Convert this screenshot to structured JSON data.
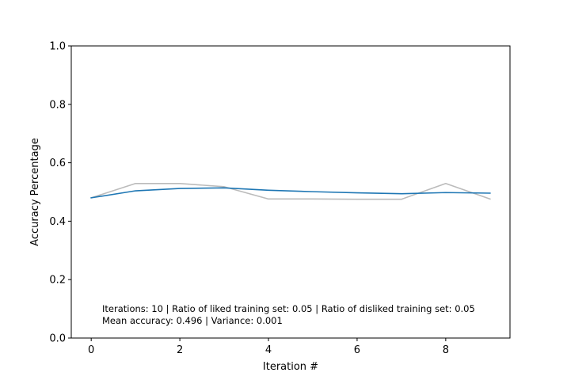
{
  "chart_data": {
    "type": "line",
    "title": "",
    "xlabel": "Iteration #",
    "ylabel": "Accuracy Percentage",
    "xlim": [
      -0.45,
      9.45
    ],
    "ylim": [
      0.0,
      1.0
    ],
    "xticks": [
      0,
      2,
      4,
      6,
      8
    ],
    "xtick_labels": [
      "0",
      "2",
      "4",
      "6",
      "8"
    ],
    "yticks": [
      0.0,
      0.2,
      0.4,
      0.6,
      0.8,
      1.0
    ],
    "ytick_labels": [
      "0.0",
      "0.2",
      "0.4",
      "0.6",
      "0.8",
      "1.0"
    ],
    "grid": false,
    "legend": false,
    "x": [
      0,
      1,
      2,
      3,
      4,
      5,
      6,
      7,
      8,
      9
    ],
    "series": [
      {
        "color": "#bbbbbb",
        "values": [
          0.48,
          0.529,
          0.529,
          0.518,
          0.476,
          0.476,
          0.475,
          0.475,
          0.529,
          0.476
        ]
      },
      {
        "color": "#1f77b4",
        "values": [
          0.48,
          0.504,
          0.512,
          0.514,
          0.506,
          0.501,
          0.497,
          0.494,
          0.498,
          0.496
        ]
      }
    ],
    "annotations": [
      "Iterations: 10 | Ratio of liked training set: 0.05 | Ratio of disliked training set: 0.05",
      "Mean accuracy: 0.496 | Variance: 0.001"
    ]
  }
}
